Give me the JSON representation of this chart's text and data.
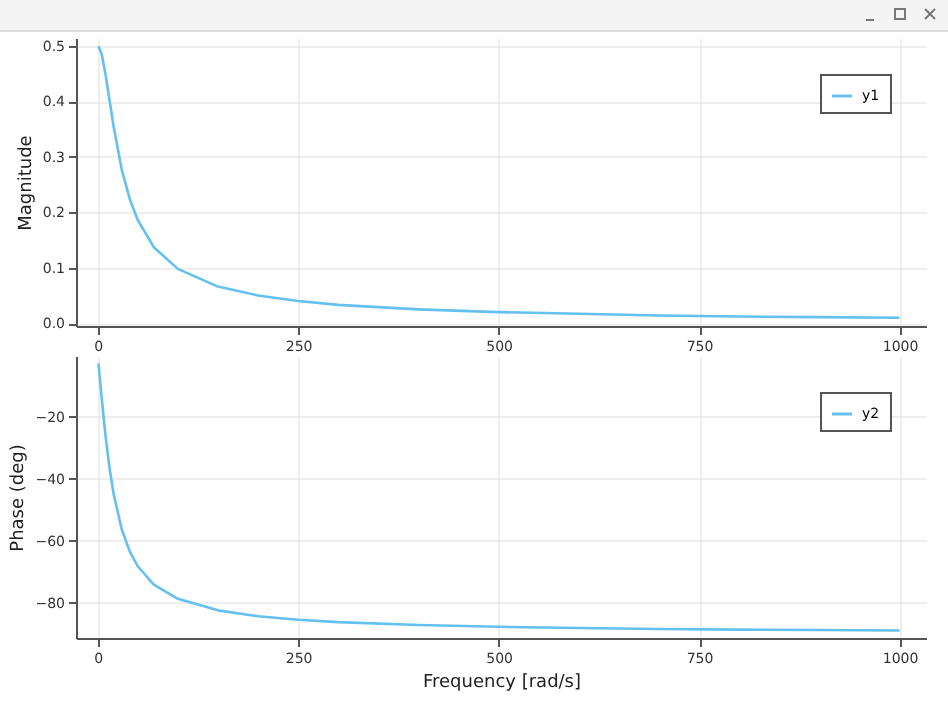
{
  "chart_data": [
    {
      "type": "line",
      "ylabel": "Magnitude",
      "xlim": [
        -27,
        1033
      ],
      "xticks": [
        0,
        250,
        500,
        750,
        1000
      ],
      "ylim": [
        -0.005,
        0.514
      ],
      "yticks": [
        {
          "value": 0,
          "label": "0.0"
        },
        0.1,
        0.2,
        0.3,
        0.4,
        0.5
      ],
      "grid": true,
      "legend": "top right",
      "x": [
        1,
        5,
        10,
        15,
        20,
        30,
        40,
        50,
        70,
        100,
        150,
        200,
        250,
        300,
        400,
        500,
        600,
        700,
        800,
        900,
        1000
      ],
      "series": [
        {
          "name": "y1",
          "color": "#63c0ef",
          "values": [
            0.499,
            0.485,
            0.447,
            0.4,
            0.354,
            0.277,
            0.224,
            0.186,
            0.137,
            0.098,
            0.066,
            0.05,
            0.04,
            0.033,
            0.025,
            0.02,
            0.017,
            0.014,
            0.012,
            0.011,
            0.01
          ]
        }
      ]
    },
    {
      "type": "line",
      "xlabel": "Frequency [rad/s]",
      "ylabel": "Phase (deg)",
      "xlim": [
        -27,
        1033
      ],
      "xticks": [
        0,
        250,
        500,
        750,
        1000
      ],
      "ylim": [
        -91.3,
        -0.5
      ],
      "yticks": [
        -20,
        -40,
        -60,
        -80
      ],
      "grid": true,
      "legend": "top right",
      "x": [
        1,
        5,
        10,
        15,
        20,
        30,
        40,
        50,
        70,
        100,
        150,
        200,
        250,
        300,
        400,
        500,
        600,
        700,
        800,
        900,
        1000
      ],
      "series": [
        {
          "name": "y2",
          "color": "#63c0ef",
          "values": [
            -2.9,
            -14.0,
            -26.6,
            -36.9,
            -45.0,
            -56.3,
            -63.4,
            -68.2,
            -74.1,
            -78.7,
            -82.4,
            -84.3,
            -85.4,
            -86.2,
            -87.1,
            -87.7,
            -88.1,
            -88.4,
            -88.6,
            -88.7,
            -88.9
          ]
        }
      ]
    }
  ]
}
